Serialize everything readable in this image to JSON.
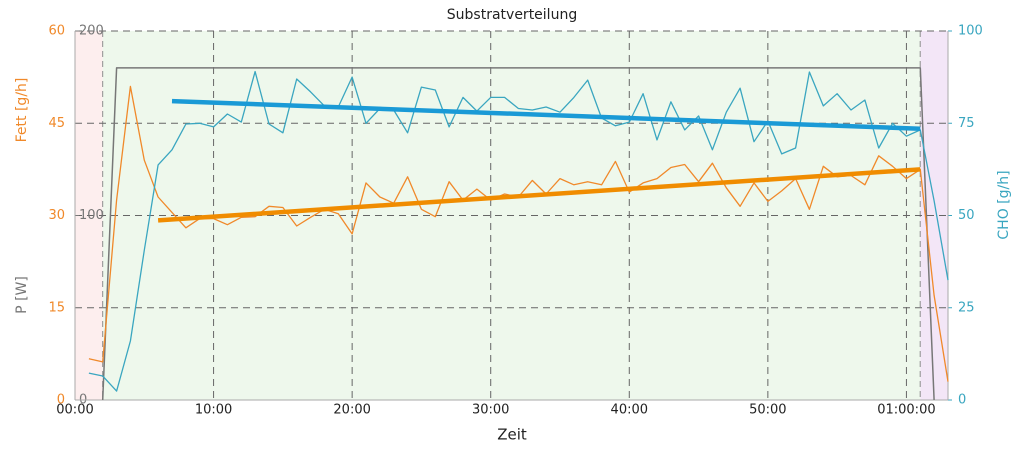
{
  "chart_data": {
    "type": "line",
    "title": "Substratverteilung",
    "xlabel": "Zeit",
    "ylabel": "Fett [g/h]",
    "y2label": "CHO [g/h]",
    "y3label": "P [W]",
    "xlim": [
      0,
      63
    ],
    "xticks": [
      {
        "value": 0,
        "label": "00:00"
      },
      {
        "value": 10,
        "label": "10:00"
      },
      {
        "value": 20,
        "label": "20:00"
      },
      {
        "value": 30,
        "label": "30:00"
      },
      {
        "value": 40,
        "label": "40:00"
      },
      {
        "value": 50,
        "label": "50:00"
      },
      {
        "value": 60,
        "label": "01:00:00"
      }
    ],
    "ylim": [
      0,
      60
    ],
    "yticks": [
      0,
      15,
      30,
      45,
      60
    ],
    "ycolor": "#f0892a",
    "y2lim": [
      0,
      100
    ],
    "y2ticks": [
      0,
      25,
      50,
      75,
      100
    ],
    "y2color": "#3aa6c0",
    "y3lim": [
      0,
      200
    ],
    "y3ticks": [
      0,
      100,
      200
    ],
    "y3color": "#777777",
    "grid": true,
    "regions": [
      {
        "xlim": [
          0,
          2
        ],
        "color": "#fdeeee"
      },
      {
        "xlim": [
          2,
          61
        ],
        "color": "#eef8ec"
      },
      {
        "xlim": [
          61,
          63
        ],
        "color": "#f3e6f7"
      }
    ],
    "series": [
      {
        "color": "#777777",
        "axis": "y3",
        "width": 1.5,
        "x": [
          2,
          3,
          61,
          62
        ],
        "values": [
          0,
          180,
          180,
          0
        ]
      },
      {
        "color": "#f0892a",
        "axis": "y",
        "width": 1.3,
        "x": [
          1,
          2,
          3,
          4,
          5,
          6,
          7,
          8,
          9,
          10,
          11,
          12,
          13,
          14,
          15,
          16,
          17,
          18,
          19,
          20,
          21,
          22,
          23,
          24,
          25,
          26,
          27,
          28,
          29,
          30,
          31,
          32,
          33,
          34,
          35,
          36,
          37,
          38,
          39,
          40,
          41,
          42,
          43,
          44,
          45,
          46,
          47,
          48,
          49,
          50,
          51,
          52,
          53,
          54,
          55,
          56,
          57,
          58,
          59,
          60,
          61,
          62,
          63
        ],
        "values": [
          6.7,
          6.2,
          32.5,
          51,
          39,
          33,
          30.5,
          28,
          29.5,
          29.5,
          28.5,
          29.7,
          29.8,
          31.5,
          31.3,
          28.3,
          29.7,
          31,
          30.3,
          27,
          35.3,
          33,
          32,
          36.3,
          31,
          29.8,
          35.5,
          32.5,
          34.3,
          32.5,
          33.5,
          33,
          35.7,
          33.5,
          36,
          35,
          35.5,
          35,
          38.8,
          33.8,
          35.3,
          36,
          37.8,
          38.3,
          35.5,
          38.5,
          34.5,
          31.5,
          35.3,
          32.3,
          34,
          36,
          31,
          38,
          36.3,
          36.5,
          35,
          39.7,
          38,
          36,
          37.5,
          17,
          3
        ]
      },
      {
        "color": "#3aa6c0",
        "axis": "y2",
        "width": 1.3,
        "x": [
          1,
          2,
          3,
          4,
          5,
          6,
          7,
          8,
          9,
          10,
          11,
          12,
          13,
          14,
          15,
          16,
          17,
          18,
          19,
          20,
          21,
          22,
          23,
          24,
          25,
          26,
          27,
          28,
          29,
          30,
          31,
          32,
          33,
          34,
          35,
          36,
          37,
          38,
          39,
          40,
          41,
          42,
          43,
          44,
          45,
          46,
          47,
          48,
          49,
          50,
          51,
          52,
          53,
          54,
          55,
          56,
          57,
          58,
          59,
          60,
          61,
          62,
          63
        ],
        "values": [
          7.3,
          6.5,
          2.4,
          16,
          40.6,
          63.7,
          67.8,
          74.8,
          75,
          74,
          77.5,
          75.3,
          89,
          74.8,
          72.4,
          87,
          83.5,
          79.7,
          79.4,
          87.5,
          75,
          79,
          78.6,
          72.4,
          84.8,
          84,
          74,
          82,
          78.3,
          82,
          82,
          79,
          78.6,
          79.4,
          78,
          82,
          86.7,
          76.4,
          74.3,
          75.3,
          83,
          70.5,
          80.8,
          73.2,
          77,
          67.8,
          78,
          84.5,
          70,
          75.6,
          66.7,
          68.3,
          88.9,
          79.7,
          83,
          78.6,
          81.3,
          68.3,
          75,
          71.5,
          73.2,
          54,
          32.5
        ]
      },
      {
        "color": "#f08c00",
        "axis": "y",
        "width": 4.5,
        "x": [
          6,
          61
        ],
        "values": [
          29.2,
          37.5
        ]
      },
      {
        "color": "#1a9ad6",
        "axis": "y2",
        "width": 4.5,
        "x": [
          7,
          61
        ],
        "values": [
          81,
          73.5
        ]
      }
    ]
  }
}
